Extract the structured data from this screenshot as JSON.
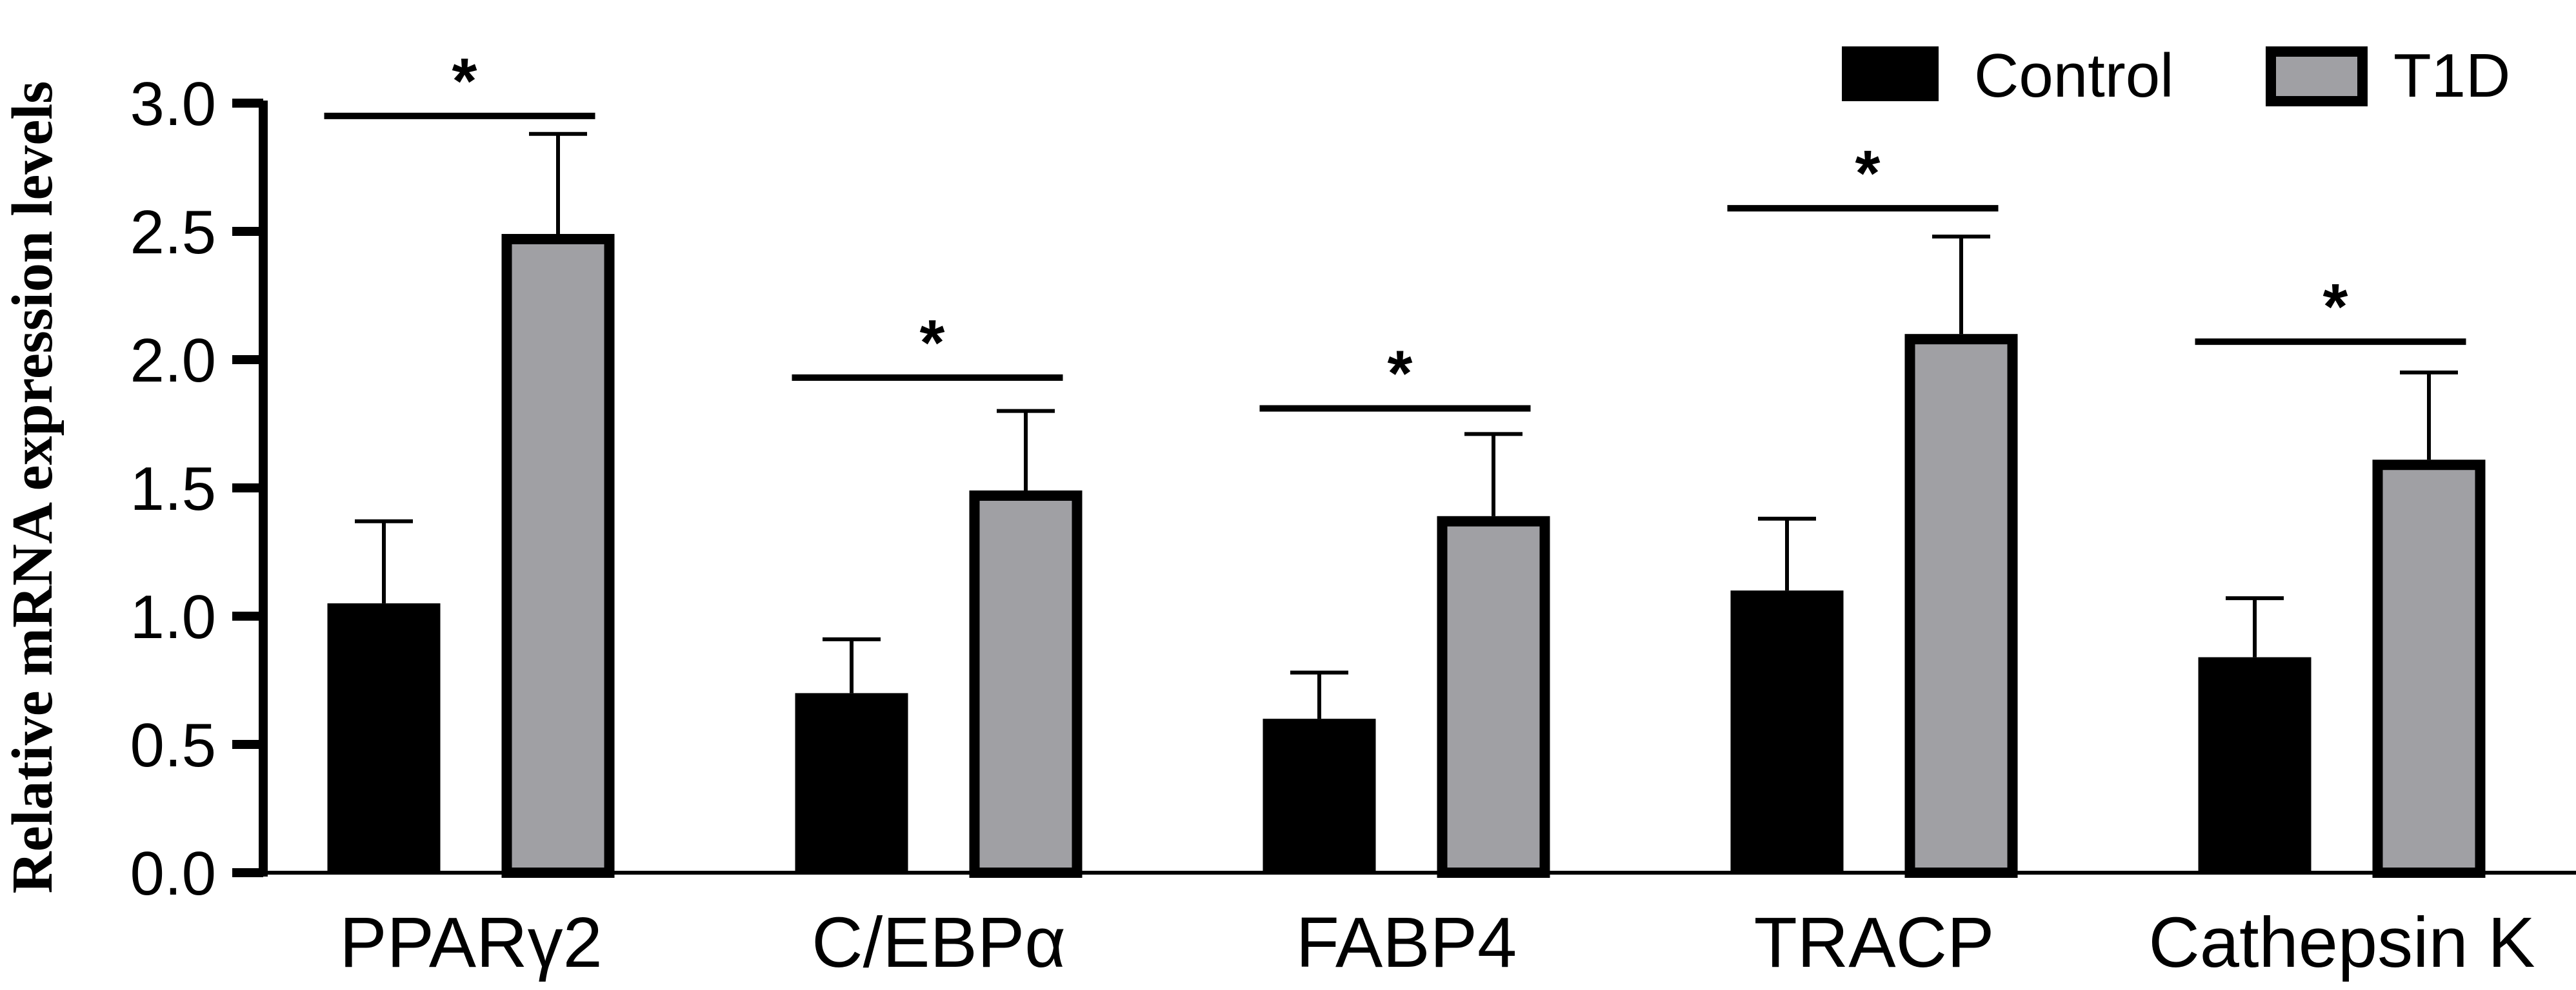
{
  "chart_data": {
    "type": "bar",
    "ylabel": "Relative mRNA expression levels",
    "ylim": [
      0,
      3.0
    ],
    "yticks": [
      "0.0",
      "0.5",
      "1.0",
      "1.5",
      "2.0",
      "2.5",
      "3.0"
    ],
    "categories": [
      "PPARγ2",
      "C/EBPα",
      "FABP4",
      "TRACP",
      "Cathepsin K"
    ],
    "legend_position": "top-right",
    "series": [
      {
        "name": "Control",
        "color": "#000000",
        "values": [
          1.05,
          0.7,
          0.6,
          1.1,
          0.84
        ],
        "errors": [
          0.32,
          0.21,
          0.18,
          0.28,
          0.23
        ]
      },
      {
        "name": "T1D",
        "color": "#a0a0a4",
        "edge_color": "#000000",
        "values": [
          2.49,
          1.49,
          1.39,
          2.1,
          1.61
        ],
        "errors": [
          0.39,
          0.31,
          0.32,
          0.38,
          0.34
        ]
      }
    ],
    "significance": [
      {
        "label": "*",
        "level": 2.95
      },
      {
        "label": "*",
        "level": 1.93
      },
      {
        "label": "*",
        "level": 1.81
      },
      {
        "label": "*",
        "level": 2.59
      },
      {
        "label": "*",
        "level": 2.07
      }
    ]
  }
}
